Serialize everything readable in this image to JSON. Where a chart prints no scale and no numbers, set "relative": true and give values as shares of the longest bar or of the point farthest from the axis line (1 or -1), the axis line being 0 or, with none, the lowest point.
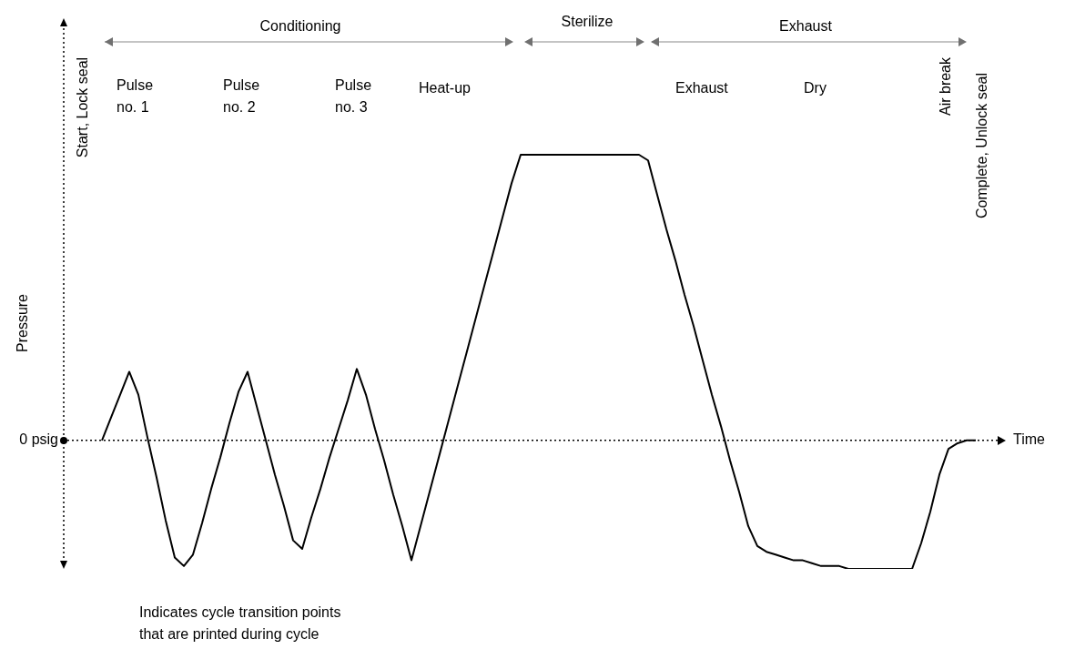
{
  "chart_data": {
    "type": "line",
    "relative": true,
    "xlabel": "Time",
    "ylabel": "Pressure",
    "categories": [
      null,
      null,
      null,
      null,
      null,
      null,
      null,
      null,
      null,
      null,
      null,
      null,
      null,
      null,
      null,
      null,
      null,
      null,
      null,
      null,
      null,
      null,
      null,
      null,
      null,
      null,
      null,
      null,
      null,
      null,
      null,
      null,
      null,
      null,
      null,
      null,
      null,
      null,
      null,
      null,
      null,
      null,
      null,
      null,
      null,
      null,
      null,
      null,
      null,
      null,
      null,
      null,
      null,
      null,
      null,
      null,
      null,
      null,
      null,
      null,
      null,
      null,
      null,
      null,
      null,
      null,
      null,
      null,
      null,
      null,
      null,
      null,
      null,
      null,
      null,
      null,
      null,
      null,
      null,
      null,
      null,
      null,
      null,
      null,
      null,
      null,
      null,
      null,
      null,
      null,
      null,
      null,
      null,
      null,
      null,
      null,
      null
    ],
    "series": [
      {
        "color": "#000000",
        "values": [
          0,
          0.08,
          0.16,
          0.24,
          0.16,
          0.01,
          -0.13,
          -0.28,
          -0.41,
          -0.44,
          -0.4,
          -0.29,
          -0.17,
          -0.06,
          0.06,
          0.17,
          0.24,
          0.12,
          0,
          -0.12,
          -0.23,
          -0.35,
          -0.38,
          -0.27,
          -0.17,
          -0.06,
          0.04,
          0.14,
          0.25,
          0.16,
          0.04,
          -0.07,
          -0.19,
          -0.3,
          -0.42,
          -0.3,
          -0.18,
          -0.06,
          0.06,
          0.18,
          0.3,
          0.42,
          0.54,
          0.66,
          0.78,
          0.9,
          1,
          1,
          1,
          1,
          1,
          1,
          1,
          1,
          1,
          1,
          1,
          1,
          1,
          1,
          0.98,
          0.86,
          0.74,
          0.63,
          0.51,
          0.4,
          0.28,
          0.16,
          0.05,
          -0.07,
          -0.18,
          -0.3,
          -0.37,
          -0.39,
          -0.4,
          -0.41,
          -0.42,
          -0.42,
          -0.43,
          -0.44,
          -0.44,
          -0.44,
          -0.45,
          -0.45,
          -0.45,
          -0.45,
          -0.45,
          -0.45,
          -0.45,
          -0.45,
          -0.36,
          -0.25,
          -0.12,
          -0.03,
          -0.01,
          0,
          0
        ]
      }
    ],
    "ref_lines": [
      {
        "axis": "y",
        "value": 0,
        "label": "0 psig",
        "line_style": "dotted"
      }
    ],
    "marker": "none",
    "line_style": "solid",
    "legend": false,
    "annotations": [
      "Conditioning",
      "Sterilize",
      "Exhaust",
      "Pulse no. 1",
      "Pulse no. 2",
      "Pulse no. 3",
      "Heat-up",
      "Exhaust",
      "Dry",
      "Start, Lock seal",
      "Air break",
      "Complete, Unlock seal",
      "Indicates cycle transition points that are printed during cycle"
    ]
  }
}
